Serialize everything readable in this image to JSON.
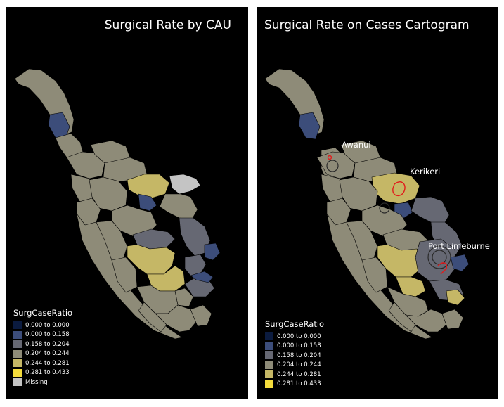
{
  "colors": {
    "bin_0": "#0b1b3f",
    "bin_1": "#3c4d7a",
    "bin_2": "#666873",
    "bin_3": "#8e8b78",
    "bin_4": "#c5b766",
    "bin_5": "#f4dc3c",
    "missing": "#c4c4c4",
    "background": "#000000",
    "highlight": "#e11b1b"
  },
  "left_map": {
    "title": "Surgical Rate by CAU",
    "legend": {
      "title": "SurgCaseRatio",
      "items": [
        {
          "label": "0.000 to 0.000",
          "color": "#0b1b3f"
        },
        {
          "label": "0.000 to 0.158",
          "color": "#3c4d7a"
        },
        {
          "label": "0.158 to 0.204",
          "color": "#666873"
        },
        {
          "label": "0.204 to 0.244",
          "color": "#8e8b78"
        },
        {
          "label": "0.244 to 0.281",
          "color": "#c5b766"
        },
        {
          "label": "0.281 to 0.433",
          "color": "#f4dc3c"
        },
        {
          "label": "Missing",
          "color": "#c4c4c4"
        }
      ]
    }
  },
  "right_map": {
    "title": "Surgical Rate on Cases Cartogram",
    "places": [
      "Awanui",
      "Kerikeri",
      "Port Limeburne"
    ],
    "legend": {
      "title": "SurgCaseRatio",
      "items": [
        {
          "label": "0.000 to 0.000",
          "color": "#0b1b3f"
        },
        {
          "label": "0.000 to 0.158",
          "color": "#3c4d7a"
        },
        {
          "label": "0.158 to 0.204",
          "color": "#666873"
        },
        {
          "label": "0.204 to 0.244",
          "color": "#8e8b78"
        },
        {
          "label": "0.244 to 0.281",
          "color": "#c5b766"
        },
        {
          "label": "0.281 to 0.433",
          "color": "#f4dc3c"
        }
      ]
    }
  }
}
